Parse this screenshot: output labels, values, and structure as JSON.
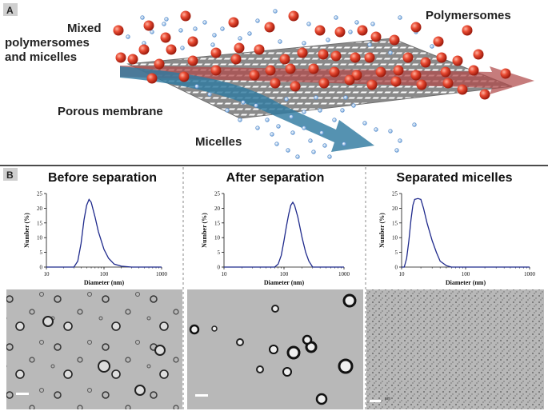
{
  "panel_a": {
    "label": "A",
    "text_mixed_1": "Mixed",
    "text_mixed_2": "polymersomes",
    "text_mixed_3": "and micelles",
    "text_polymersomes": "Polymersomes",
    "text_membrane": "Porous membrane",
    "text_micelles": "Micelles"
  },
  "panel_b": {
    "label": "B",
    "columns": [
      {
        "title": "Before separation"
      },
      {
        "title": "After separation"
      },
      {
        "title": "Separated micelles"
      }
    ],
    "scale_text": "μm"
  },
  "chart_data": [
    {
      "type": "line",
      "title": "Before separation",
      "xlabel": "Diameter (nm)",
      "ylabel": "Number (%)",
      "xscale": "log",
      "xlim": [
        10,
        1000
      ],
      "ylim": [
        0,
        25
      ],
      "xticks": [
        "10",
        "100",
        "1000"
      ],
      "yticks": [
        "0",
        "5",
        "10",
        "15",
        "20",
        "25"
      ],
      "color": "#1f2a8c",
      "x": [
        30,
        35,
        40,
        45,
        50,
        55,
        60,
        70,
        80,
        100,
        120,
        150,
        200,
        300,
        1000
      ],
      "y": [
        0,
        2,
        8,
        16,
        21,
        23,
        22,
        17,
        12,
        6,
        3,
        1,
        0.3,
        0,
        0
      ]
    },
    {
      "type": "line",
      "title": "After separation",
      "xlabel": "Diameter (nm)",
      "ylabel": "Number (%)",
      "xscale": "log",
      "xlim": [
        10,
        1000
      ],
      "ylim": [
        0,
        25
      ],
      "xticks": [
        "10",
        "100",
        "1000"
      ],
      "yticks": [
        "0",
        "5",
        "10",
        "15",
        "20",
        "25"
      ],
      "color": "#1f2a8c",
      "x": [
        70,
        80,
        90,
        100,
        110,
        120,
        130,
        140,
        150,
        170,
        200,
        230,
        260,
        300,
        1000
      ],
      "y": [
        0,
        1,
        4,
        9,
        14,
        18,
        21,
        22,
        21,
        17,
        10,
        5,
        2,
        0,
        0
      ]
    },
    {
      "type": "line",
      "title": "Separated micelles",
      "xlabel": "Diameter (nm)",
      "ylabel": "Number (%)",
      "xscale": "log",
      "xlim": [
        10,
        1000
      ],
      "ylim": [
        0,
        25
      ],
      "xticks": [
        "10",
        "100",
        "1000"
      ],
      "yticks": [
        "0",
        "5",
        "10",
        "15",
        "20",
        "25"
      ],
      "color": "#1f2a8c",
      "x": [
        11,
        12,
        13,
        14,
        15,
        16,
        18,
        20,
        22,
        25,
        30,
        35,
        40,
        50,
        60,
        1000
      ],
      "y": [
        0,
        3,
        9,
        16,
        21,
        23,
        23.3,
        23,
        20,
        15,
        9,
        5,
        2,
        0.5,
        0,
        0
      ]
    }
  ]
}
